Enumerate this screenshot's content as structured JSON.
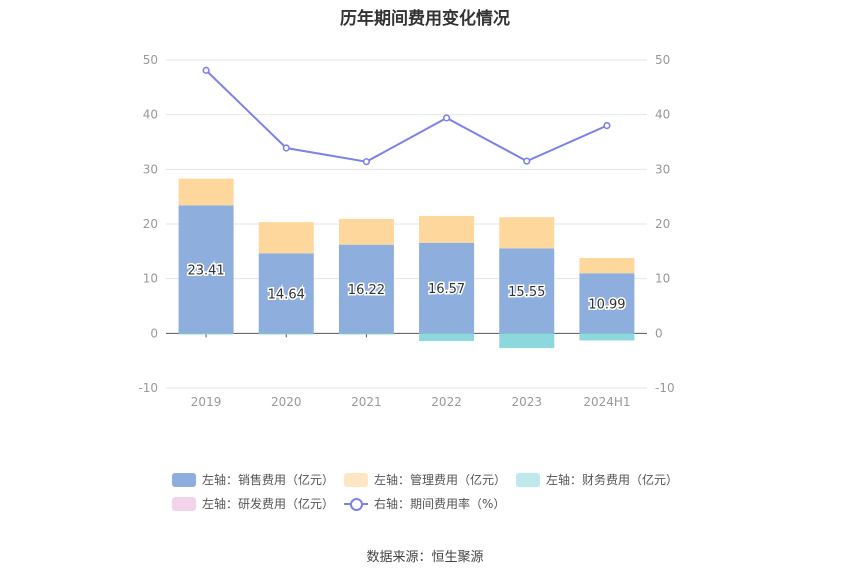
{
  "chart_data": {
    "type": "bar",
    "title": "历年期间费用变化情况",
    "categories": [
      "2019",
      "2020",
      "2021",
      "2022",
      "2023",
      "2024H1"
    ],
    "series": [
      {
        "name": "左轴：销售费用（亿元）",
        "axis": "left",
        "kind": "stacked-bar",
        "color": "#8eaedd",
        "values": [
          23.41,
          14.64,
          16.22,
          16.57,
          15.55,
          10.99
        ]
      },
      {
        "name": "左轴：管理费用（亿元）",
        "axis": "left",
        "kind": "stacked-bar",
        "color": "#fdd79b",
        "values": [
          4.9,
          5.7,
          4.7,
          4.9,
          5.7,
          2.8
        ]
      },
      {
        "name": "左轴：财务费用（亿元）",
        "axis": "left",
        "kind": "stacked-bar",
        "color": "#8dd8dc",
        "values": [
          -0.2,
          -0.2,
          -0.2,
          -1.4,
          -2.7,
          -1.3
        ]
      },
      {
        "name": "左轴：研发费用（亿元）",
        "axis": "left",
        "kind": "stacked-bar",
        "color": "#f2d4ea",
        "values": [
          0,
          0,
          0,
          0,
          0,
          0
        ]
      },
      {
        "name": "右轴：期间费用率（%）",
        "axis": "right",
        "kind": "line",
        "color": "#7b83e6",
        "values": [
          48.1,
          33.9,
          31.4,
          39.4,
          31.5,
          38.0
        ]
      }
    ],
    "data_labels": [
      "23.41",
      "14.64",
      "16.22",
      "16.57",
      "15.55",
      "10.99"
    ],
    "left_axis": {
      "min": -10,
      "max": 50,
      "ticks": [
        "-10",
        "0",
        "10",
        "20",
        "30",
        "40",
        "50"
      ]
    },
    "right_axis": {
      "min": -10,
      "max": 50,
      "ticks": [
        "-10",
        "0",
        "10",
        "20",
        "30",
        "40",
        "50"
      ]
    },
    "grid": true,
    "legend_position": "bottom"
  },
  "legend": {
    "items": [
      {
        "label": "左轴：销售费用（亿元）",
        "color": "#8eaedd"
      },
      {
        "label": "左轴：管理费用（亿元）",
        "color": "#fdd79b"
      },
      {
        "label": "左轴：财务费用（亿元）",
        "color": "#bfe9ea"
      },
      {
        "label": "左轴：研发费用（亿元）",
        "color": "#f2d4ea"
      },
      {
        "label": "右轴：期间费用率（%）",
        "color": "#7b83e6"
      }
    ]
  },
  "source": "数据来源：恒生聚源"
}
